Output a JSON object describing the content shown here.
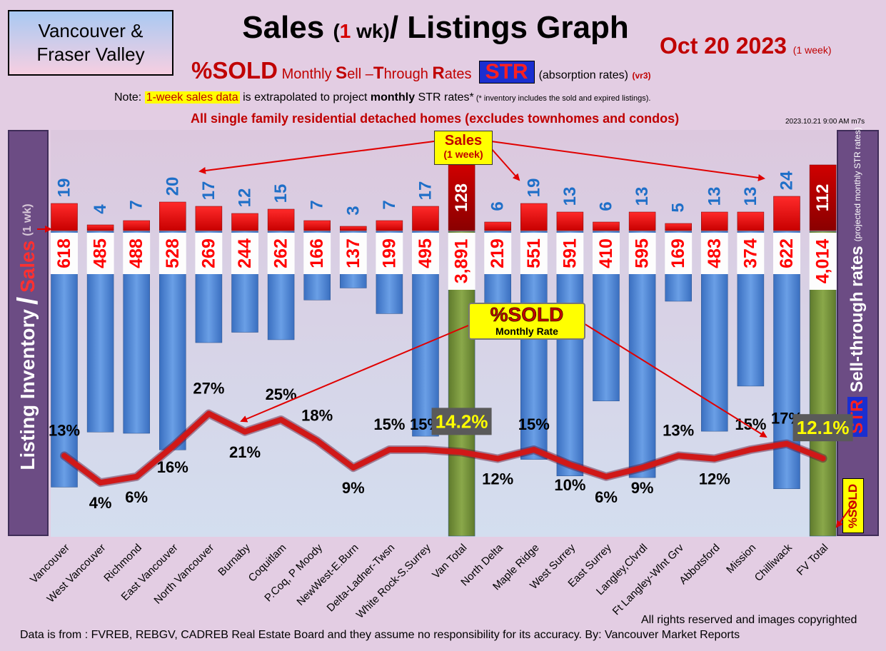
{
  "header": {
    "region_line1": "Vancouver &",
    "region_line2": "Fraser Valley",
    "title_part1": "Sales ",
    "title_paren_open": "(",
    "title_one": "1",
    "title_wk": " wk)",
    "title_part2": "/ Listings Graph",
    "date": "Oct 20  2023",
    "date_sub": "(1 week)",
    "subtitle_pct": "%SOLD",
    "subtitle_m": " Monthly ",
    "subtitle_S": "S",
    "subtitle_ell": "ell –",
    "subtitle_T": "T",
    "subtitle_hrough": "hrough ",
    "subtitle_R": "R",
    "subtitle_ates": "ates",
    "str_badge": "STR",
    "absorption": "(absorption rates)",
    "version": "(vr3)",
    "note_prefix": "Note: ",
    "note_highlight": "1-week sales data",
    "note_mid": " is extrapolated to project ",
    "note_bold": "monthly",
    "note_end": " STR rates*",
    "note_small": " (* inventory includes the sold and expired listings).",
    "scope": "All single family residential detached homes (excludes townhomes and condos)",
    "timestamp": "2023.10.21 9:00 AM m7s"
  },
  "side_labels": {
    "left_main": "Listing Inventory",
    "left_slash": "/",
    "left_sales": "Sales",
    "left_wk": "(1 wk)",
    "right_str": "STR",
    "right_main": "Sell-through rates",
    "right_proj": "(projected monthly STR rates)",
    "right_pct_sold": "%SOLD"
  },
  "callouts": {
    "sales_l1": "Sales",
    "sales_l2": "(1 week)",
    "sold_l1": "%SOLD",
    "sold_l2": "Monthly Rate"
  },
  "footer": {
    "copyright": "All rights reserved and  images copyrighted",
    "source": "Data is from : FVREB, REBGV, CADREB Real Estate Board and they assume no responsibility for its accuracy. By: Vancouver Market Reports"
  },
  "colors": {
    "inventory_bar": "#4f86d6",
    "total_bar": "#76923c",
    "sales_bar": "#ff0000",
    "sales_total_bar": "#c00000",
    "sales_label": "#1f6fc8",
    "inventory_label": "#ff0000",
    "line": "#d01818",
    "arrow": "#e00000"
  },
  "chart_data": {
    "type": "bar",
    "categories": [
      "Vancouver",
      "West Vancouver",
      "Richmond",
      "East Vancouver",
      "North Vancouver",
      "Burnaby",
      "Coquitlam",
      "P.Coq, P Moody",
      "NewWest-E.Burn",
      "Delta-Ladner-Twsn",
      "White Rock-S.Surrey",
      "Van Total",
      "North Delta",
      "Maple Ridge",
      "West Surrey",
      "East Surrey",
      "Langley,Clvrdl",
      "Ft Langley-Wlnt Grv",
      "Abbotsford",
      "Mission",
      "Chilliwack",
      "FV Total"
    ],
    "totals": [
      false,
      false,
      false,
      false,
      false,
      false,
      false,
      false,
      false,
      false,
      false,
      true,
      false,
      false,
      false,
      false,
      false,
      false,
      false,
      false,
      false,
      true
    ],
    "series": [
      {
        "name": "Sales",
        "values": [
          19,
          4,
          7,
          20,
          17,
          12,
          15,
          7,
          3,
          7,
          17,
          128,
          6,
          19,
          13,
          6,
          13,
          5,
          13,
          13,
          24,
          112
        ]
      },
      {
        "name": "Listing Inventory",
        "values": [
          618,
          485,
          488,
          528,
          269,
          244,
          262,
          166,
          137,
          199,
          495,
          3891,
          219,
          551,
          591,
          410,
          595,
          169,
          483,
          374,
          622,
          4014
        ]
      },
      {
        "name": "%SOLD",
        "values": [
          13,
          4,
          6,
          16,
          27,
          21,
          25,
          18,
          9,
          15,
          15,
          14.2,
          12,
          15,
          10,
          6,
          9,
          13,
          12,
          15,
          17,
          12.1
        ]
      }
    ],
    "inventory_labels": [
      "618",
      "485",
      "488",
      "528",
      "269",
      "244",
      "262",
      "166",
      "137",
      "199",
      "495",
      "3,891",
      "219",
      "551",
      "591",
      "410",
      "595",
      "169",
      "483",
      "374",
      "622",
      "4,014"
    ],
    "pct_labels": [
      "13%",
      "4%",
      "6%",
      "16%",
      "27%",
      "21%",
      "25%",
      "18%",
      "9%",
      "15%",
      "15%",
      "14.2%",
      "12%",
      "15%",
      "10%",
      "6%",
      "9%",
      "13%",
      "12%",
      "15%",
      "17%",
      "12.1%"
    ],
    "legend": "none",
    "grid": false
  }
}
